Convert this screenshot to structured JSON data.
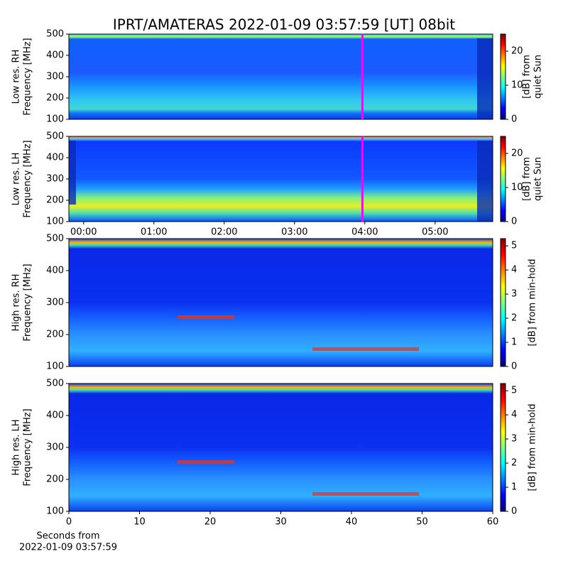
{
  "title": "IPRT/AMATERAS 2022-01-09 03:57:59 [UT]   08bit",
  "chart_data": [
    {
      "type": "heatmap",
      "ylabel": [
        "Low res. RH",
        "Frequency [MHz]"
      ],
      "ylim": [
        100,
        500
      ],
      "yticks": [
        100,
        200,
        300,
        400,
        500
      ],
      "xlim": [
        -0.21,
        5.82
      ],
      "marker_x": 3.966,
      "marker_color": "#ff00ff",
      "clim": [
        0,
        25
      ],
      "cticks": [
        0,
        10,
        20
      ],
      "clabel": [
        "[dB] from",
        "quiet Sun"
      ]
    },
    {
      "type": "heatmap",
      "ylabel": [
        "Low res. LH",
        "Frequency [MHz]"
      ],
      "ylim": [
        100,
        500
      ],
      "yticks": [
        100,
        200,
        300,
        400,
        500
      ],
      "xlim": [
        -0.21,
        5.82
      ],
      "marker_x": 3.966,
      "marker_color": "#ff00ff",
      "xticks": [
        {
          "value": 0,
          "label": "00:00"
        },
        {
          "value": 1,
          "label": "01:00"
        },
        {
          "value": 2,
          "label": "02:00"
        },
        {
          "value": 3,
          "label": "03:00"
        },
        {
          "value": 4,
          "label": "04:00"
        },
        {
          "value": 5,
          "label": "05:00"
        }
      ],
      "clim": [
        0,
        25
      ],
      "cticks": [
        0,
        10,
        20
      ],
      "clabel": [
        "[dB] from",
        "quiet Sun"
      ]
    },
    {
      "type": "heatmap",
      "ylabel": [
        "High res. RH",
        "Frequency [MHz]"
      ],
      "ylim": [
        100,
        500
      ],
      "yticks": [
        100,
        200,
        300,
        400,
        500
      ],
      "xlim": [
        0,
        60
      ],
      "clim": [
        0,
        5.3
      ],
      "cticks": [
        0,
        1,
        2,
        3,
        4,
        5
      ],
      "clabel": [
        "[dB] from min-hold"
      ]
    },
    {
      "type": "heatmap",
      "ylabel": [
        "High res. LH",
        "Frequency [MHz]"
      ],
      "ylim": [
        100,
        500
      ],
      "yticks": [
        100,
        200,
        300,
        400,
        500
      ],
      "xlim": [
        0,
        60
      ],
      "xticks": [
        0,
        10,
        20,
        30,
        40,
        50,
        60
      ],
      "xlabel": [
        "Seconds from",
        "2022-01-09 03:57:59"
      ],
      "clim": [
        0,
        5.3
      ],
      "cticks": [
        0,
        1,
        2,
        3,
        4,
        5
      ],
      "clabel": [
        "[dB] from min-hold"
      ]
    }
  ]
}
